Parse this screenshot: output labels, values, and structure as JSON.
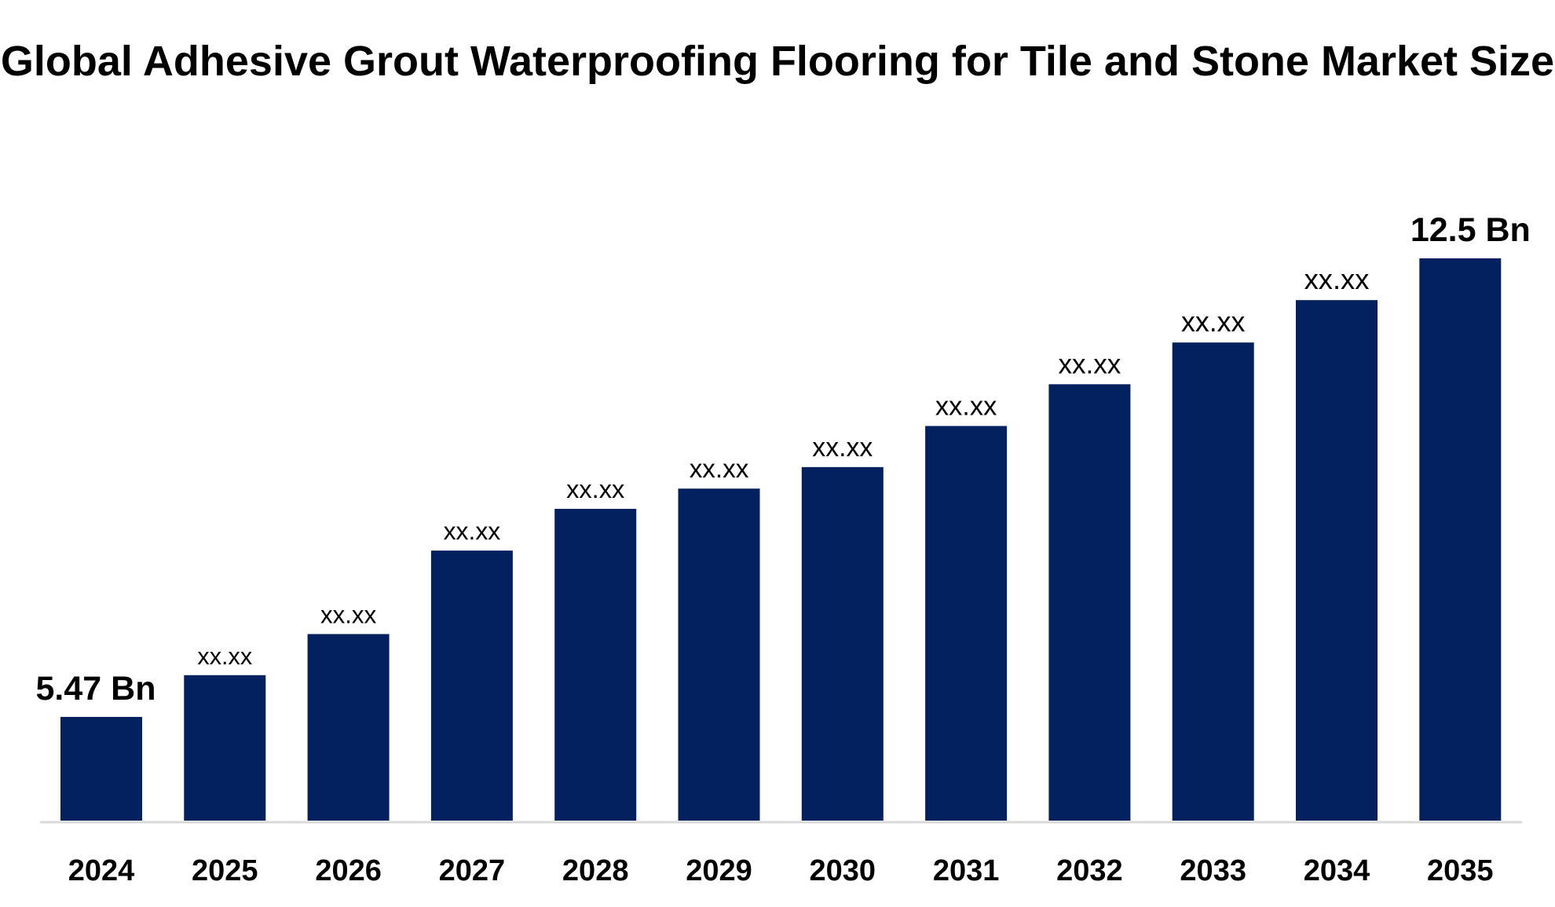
{
  "chart_data": {
    "type": "bar",
    "title": "Global Adhesive Grout Waterproofing Flooring for Tile and Stone Market Size",
    "xlabel": "",
    "ylabel": "",
    "categories": [
      "2024",
      "2025",
      "2026",
      "2027",
      "2028",
      "2029",
      "2030",
      "2031",
      "2032",
      "2033",
      "2034",
      "2035"
    ],
    "values": [
      5.47,
      6.11,
      6.74,
      8.02,
      8.66,
      8.97,
      9.3,
      9.93,
      10.57,
      11.21,
      11.86,
      12.5
    ],
    "data_labels": [
      "5.47 Bn",
      "xx.xx",
      "xx.xx",
      "xx.xx",
      "xx.xx",
      "xx.xx",
      "xx.xx",
      "xx.xx",
      "xx.xx",
      "xx.xx",
      "xx.xx",
      "12.5 Bn"
    ],
    "ylim": [
      3.88,
      12.5
    ],
    "grid": false,
    "legend": "none",
    "bar_color": "#03215F",
    "axis_color": "#D9D9D9"
  }
}
